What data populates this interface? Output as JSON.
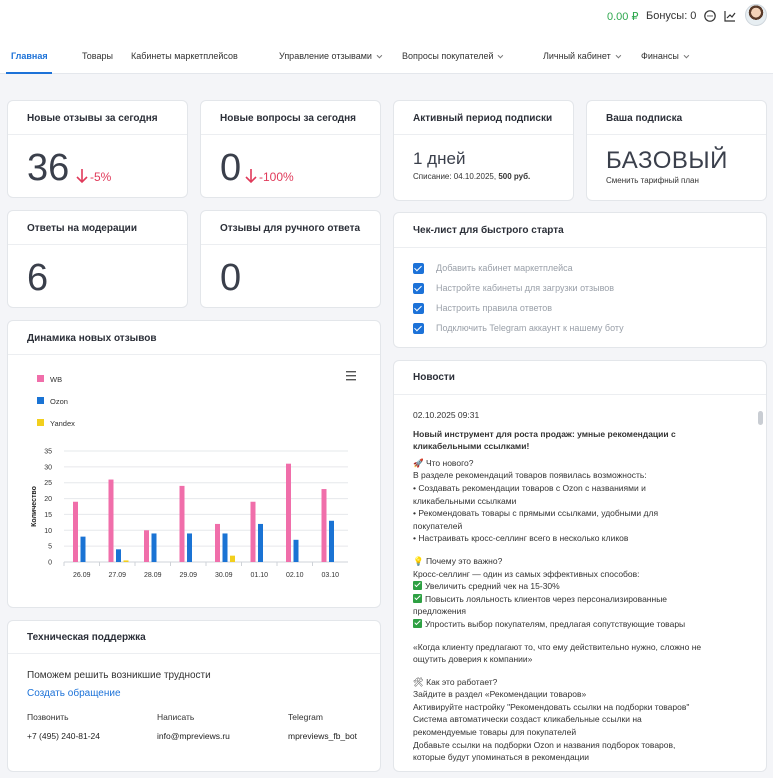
{
  "header": {
    "balance": "0.00 ₽",
    "bonus": "Бонусы: 0",
    "icons": [
      "chat-icon",
      "chart-icon",
      "user-avatar"
    ]
  },
  "nav": {
    "tabs": [
      {
        "label": "Главная",
        "active": true
      },
      {
        "label": "Товары"
      },
      {
        "label": "Кабинеты маркетплейсов"
      },
      {
        "label": "Управление отзывами",
        "dropdown": true
      },
      {
        "label": "Вопросы покупателей",
        "dropdown": true
      },
      {
        "label": "Личный кабинет",
        "dropdown": true
      },
      {
        "label": "Финансы",
        "dropdown": true
      }
    ]
  },
  "stats": {
    "new_reviews": {
      "title": "Новые отзывы за сегодня",
      "value": "36",
      "delta": "-5%"
    },
    "new_questions": {
      "title": "Новые вопросы за сегодня",
      "value": "0",
      "delta": "-100%"
    },
    "moderation": {
      "title": "Ответы на модерации",
      "value": "6"
    },
    "manual": {
      "title": "Отзывы для ручного ответа",
      "value": "0"
    }
  },
  "subscription": {
    "period_title": "Активный период подписки",
    "days": "1 дней",
    "writeoff_label": "Списание: 04.10.2025,",
    "writeoff_amount": "500 руб.",
    "plan_title": "Ваша подписка",
    "plan": "БАЗОВЫЙ",
    "change_plan": "Сменить тарифный план"
  },
  "checklist": {
    "title": "Чек-лист для быстрого старта",
    "items": [
      "Добавить кабинет маркетплейса",
      "Настройте кабинеты для загрузки отзывов",
      "Настроить правила ответов",
      "Подключить Telegram аккаунт к нашему боту"
    ]
  },
  "chart_card": {
    "title": "Динамика новых отзывов"
  },
  "chart_data": {
    "type": "bar",
    "categories": [
      "26.09",
      "27.09",
      "28.09",
      "29.09",
      "30.09",
      "01.10",
      "02.10",
      "03.10"
    ],
    "series": [
      {
        "name": "WB",
        "color": "#f06eaa",
        "values": [
          19,
          26,
          10,
          24,
          12,
          19,
          31,
          23
        ]
      },
      {
        "name": "Ozon",
        "color": "#1a73d4",
        "values": [
          8,
          4,
          9,
          9,
          9,
          12,
          7,
          13
        ]
      },
      {
        "name": "Yandex",
        "color": "#f2cf1d",
        "values": [
          0,
          0.5,
          0,
          0,
          2,
          0,
          0,
          0
        ]
      }
    ],
    "ylabel": "Количество",
    "ylim": [
      0,
      35
    ],
    "yticks": [
      0,
      5,
      10,
      15,
      20,
      25,
      30,
      35
    ],
    "grid": true,
    "legend": "top-left"
  },
  "news": {
    "title": "Новости",
    "date": "02.10.2025 09:31",
    "headline_1": "Новый инструмент для роста продаж: умные рекомендации с",
    "headline_2": "кликабельными ссылками!",
    "lines": [
      "🚀 Что нового?",
      "В разделе рекомендаций товаров появилась возможность:",
      "• Создавать рекомендации товаров с Ozon с названиями и",
      "кликабельными ссылками",
      "• Рекомендовать товары с прямыми ссылками, удобными для",
      "покупателей",
      "• Настраивать кросс-селлинг всего в несколько кликов"
    ],
    "why_title": "💡 Почему это важно?",
    "why_intro": "Кросс-селлинг — один из самых эффективных способов:",
    "why_items": [
      "Увеличить средний чек на 15-30%",
      "Повысить лояльность клиентов через персонализированные",
      "предложения",
      "Упростить выбор покупателям, предлагая сопутствующие товары"
    ],
    "quote_1": "«Когда клиенту предлагают то, что ему действительно нужно, сложно не",
    "quote_2": "ощутить доверия к компании»",
    "how_lines": [
      "🛠 Как это работает?",
      "Зайдите в раздел «Рекомендации товаров»",
      "Активируйте настройку \"Рекомендовать ссылки на подборки товаров\"",
      "Система автоматически создаст кликабельные ссылки на",
      "рекомендуемые товары для покупателей",
      "Добавьте ссылки на подборки Ozon и названия подборок товаров,",
      "которые будут упоминаться в рекомендации"
    ]
  },
  "support": {
    "title": "Техническая поддержка",
    "text": "Поможем решить возникшие трудности",
    "link": "Создать обращение",
    "call_label": "Позвонить",
    "call_value": "+7 (495) 240-81-24",
    "write_label": "Написать",
    "write_value": "info@mpreviews.ru",
    "tg_label": "Telegram",
    "tg_value": "mpreviews_fb_bot"
  }
}
